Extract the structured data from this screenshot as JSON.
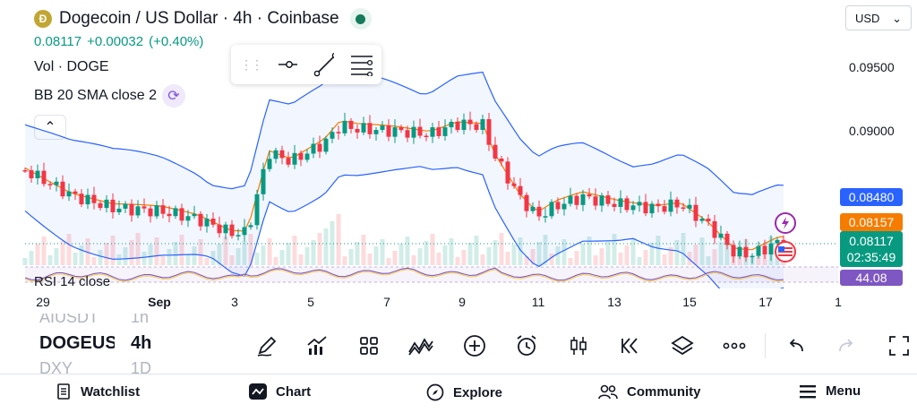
{
  "header": {
    "coin_glyph": "Ð",
    "title": "Dogecoin / US Dollar · 4h · Coinbase",
    "price": "0.08117",
    "change": "+0.00032",
    "change_pct": "(+0.40%)",
    "volume_label": "Vol · DOGE",
    "bb_label": "BB 20 SMA close 2",
    "currency": "USD",
    "collapse_glyph": "⌃"
  },
  "price_axis": {
    "ticks": [
      "0.09500",
      "0.09000"
    ],
    "labels": [
      {
        "value": "0.08480",
        "color": "#2962ff"
      },
      {
        "value": "0.08157",
        "color": "#f57c00"
      }
    ],
    "current_price": "0.08117",
    "countdown": "02:35:49",
    "rsi_value": "44.08"
  },
  "rsi_title": "RSI 14 close",
  "time_axis": [
    "29",
    "Sep",
    "3",
    "5",
    "7",
    "9",
    "11",
    "13",
    "15",
    "17",
    "1"
  ],
  "symbol_wheel": {
    "prev_symbol": "AIUSDT",
    "prev_interval": "1h",
    "symbol": "DOGEUSD",
    "interval": "4h",
    "next_symbol": "DXY",
    "next_interval": "1D"
  },
  "toolbar": {
    "tools": [
      "pencil-icon",
      "chart-add-icon",
      "grid-icon",
      "indicators-icon",
      "plus-circle-icon",
      "alarm-icon",
      "candles-icon",
      "replay-icon",
      "layers-icon",
      "more-icon",
      "undo-icon",
      "redo-icon",
      "fullscreen-icon"
    ]
  },
  "bottom_nav": {
    "watchlist": "Watchlist",
    "chart": "Chart",
    "explore": "Explore",
    "community": "Community",
    "menu": "Menu"
  },
  "colors": {
    "up": "#089981",
    "down": "#f23645",
    "bb_band": "#2962ff",
    "bb_basis": "#f57c00",
    "rsi": "#7e57c2"
  }
}
